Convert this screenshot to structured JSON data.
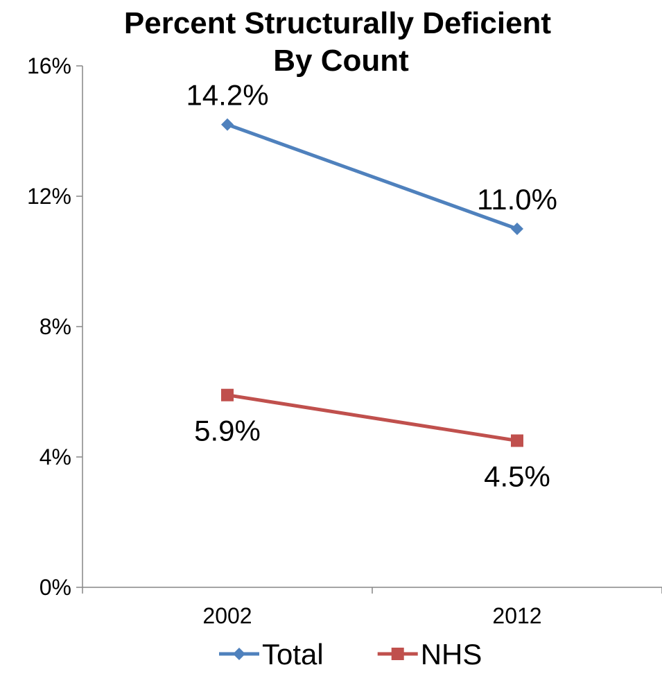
{
  "chart_data": {
    "type": "line",
    "title": "Percent Structurally Deficient",
    "subtitle": "By Count",
    "categories": [
      "2002",
      "2012"
    ],
    "y_ticks": [
      "0%",
      "4%",
      "8%",
      "12%",
      "16%"
    ],
    "ylim": [
      0,
      16
    ],
    "y_tick_values": [
      0,
      4,
      8,
      12,
      16
    ],
    "grid": false,
    "legend_position": "bottom",
    "series": [
      {
        "name": "Total",
        "values": [
          14.2,
          11.0
        ],
        "labels": [
          "14.2%",
          "11.0%"
        ],
        "color": "#4f81bd",
        "marker": "diamond"
      },
      {
        "name": "NHS",
        "values": [
          5.9,
          4.5
        ],
        "labels": [
          "5.9%",
          "4.5%"
        ],
        "color": "#c0504d",
        "marker": "square"
      }
    ]
  }
}
